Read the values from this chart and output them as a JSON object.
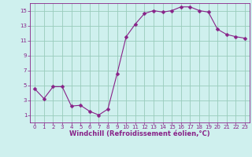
{
  "x": [
    0,
    1,
    2,
    3,
    4,
    5,
    6,
    7,
    8,
    9,
    10,
    11,
    12,
    13,
    14,
    15,
    16,
    17,
    18,
    19,
    20,
    21,
    22,
    23
  ],
  "y": [
    4.5,
    3.2,
    4.8,
    4.8,
    2.2,
    2.3,
    1.5,
    1.0,
    1.8,
    6.5,
    11.5,
    13.2,
    14.6,
    15.0,
    14.8,
    15.0,
    15.5,
    15.5,
    15.0,
    14.8,
    12.5,
    11.8,
    11.5,
    11.3
  ],
  "line_color": "#882288",
  "marker": "D",
  "marker_size": 2.5,
  "bg_color": "#cff0ee",
  "grid_color": "#99ccbb",
  "xlabel": "Windchill (Refroidissement éolien,°C)",
  "xlabel_color": "#882288",
  "tick_color": "#882288",
  "spine_color": "#882288",
  "ylim": [
    0,
    16
  ],
  "xlim": [
    -0.5,
    23.5
  ],
  "yticks": [
    1,
    3,
    5,
    7,
    9,
    11,
    13,
    15
  ],
  "xticks": [
    0,
    1,
    2,
    3,
    4,
    5,
    6,
    7,
    8,
    9,
    10,
    11,
    12,
    13,
    14,
    15,
    16,
    17,
    18,
    19,
    20,
    21,
    22,
    23
  ],
  "tick_fontsize": 5.0,
  "xlabel_fontsize": 6.0
}
